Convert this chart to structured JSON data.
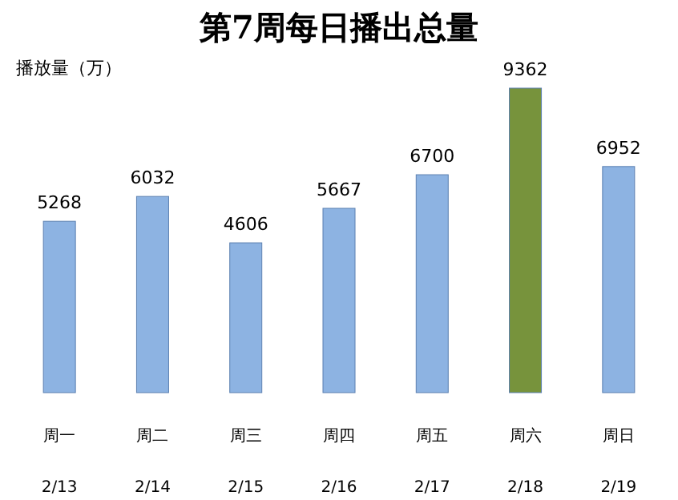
{
  "chart_data": {
    "type": "bar",
    "title": "第7周每日播出总量",
    "ylabel": "播放量（万）",
    "categories": [
      "周一\n2/13",
      "周二\n2/14",
      "周三\n2/15",
      "周四\n2/16",
      "周五\n2/17",
      "周六\n2/18",
      "周日\n2/19"
    ],
    "values": [
      5268,
      6032,
      4606,
      5667,
      6700,
      9362,
      6952
    ],
    "colors": [
      "#8db3e2",
      "#8db3e2",
      "#8db3e2",
      "#8db3e2",
      "#8db3e2",
      "#77933c",
      "#8db3e2"
    ],
    "data_labels": true
  }
}
